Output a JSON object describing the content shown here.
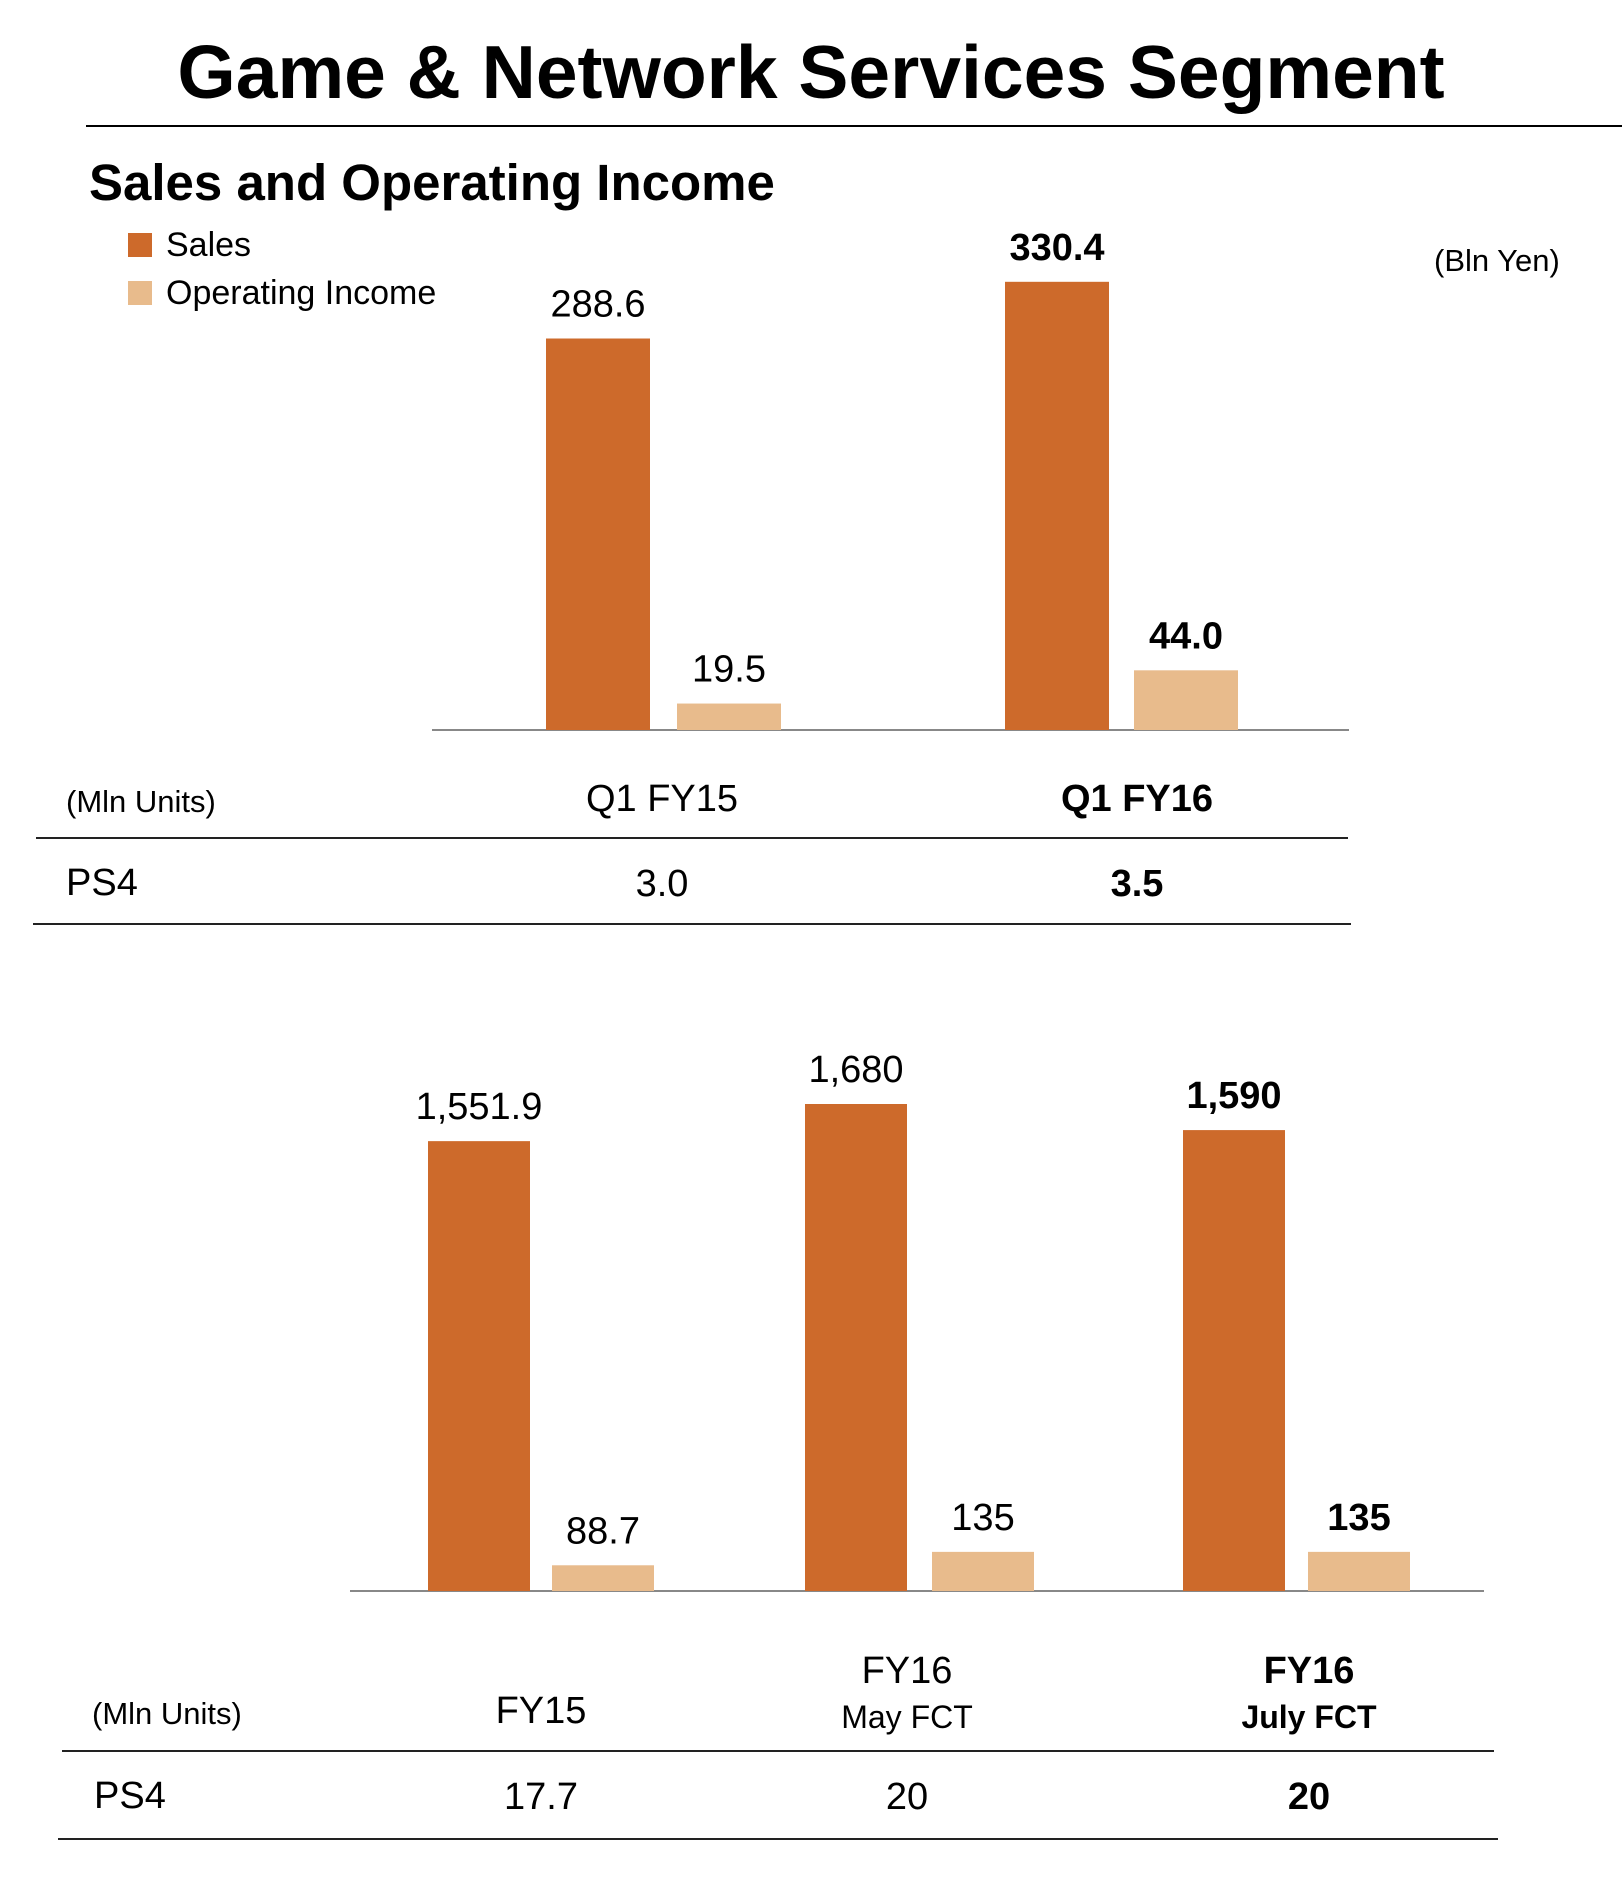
{
  "title": "Game & Network Services Segment",
  "subtitle": "Sales and Operating Income",
  "legend": [
    {
      "label": "Sales",
      "color": "#cd6a2b"
    },
    {
      "label": "Operating Income",
      "color": "#e8bb8c"
    }
  ],
  "unit_label": "(Bln Yen)",
  "chart_data": [
    {
      "type": "bar",
      "categories": [
        "Q1 FY15",
        "Q1 FY16"
      ],
      "series": [
        {
          "name": "Sales",
          "values": [
            288.6,
            330.4
          ],
          "labels": [
            "288.6",
            "330.4"
          ]
        },
        {
          "name": "Operating Income",
          "values": [
            19.5,
            44.0
          ],
          "labels": [
            "19.5",
            "44.0"
          ]
        }
      ],
      "ylim": [
        0,
        345
      ],
      "bold_category": 1,
      "colors": [
        "#cd6a2b",
        "#e8bb8c"
      ]
    },
    {
      "type": "bar",
      "categories": [
        "FY15",
        "FY16 May FCT",
        "FY16 July FCT"
      ],
      "series": [
        {
          "name": "Sales",
          "values": [
            1551.9,
            1680,
            1590
          ],
          "labels": [
            "1,551.9",
            "1,680",
            "1,590"
          ]
        },
        {
          "name": "Operating Income",
          "values": [
            88.7,
            135,
            135
          ],
          "labels": [
            "88.7",
            "135",
            "135"
          ]
        }
      ],
      "ylim": [
        0,
        1680
      ],
      "bold_category": 2,
      "colors": [
        "#cd6a2b",
        "#e8bb8c"
      ]
    }
  ],
  "table1": {
    "unit": "(Mln Units)",
    "headers": [
      "Q1 FY15",
      "Q1 FY16"
    ],
    "row_label": "PS4",
    "values": [
      "3.0",
      "3.5"
    ]
  },
  "table2": {
    "unit": "(Mln Units)",
    "headers": [
      {
        "main": "FY15",
        "sub": ""
      },
      {
        "main": "FY16",
        "sub": "May FCT"
      },
      {
        "main": "FY16",
        "sub": "July FCT"
      }
    ],
    "row_label": "PS4",
    "values": [
      "17.7",
      "20",
      "20"
    ]
  }
}
